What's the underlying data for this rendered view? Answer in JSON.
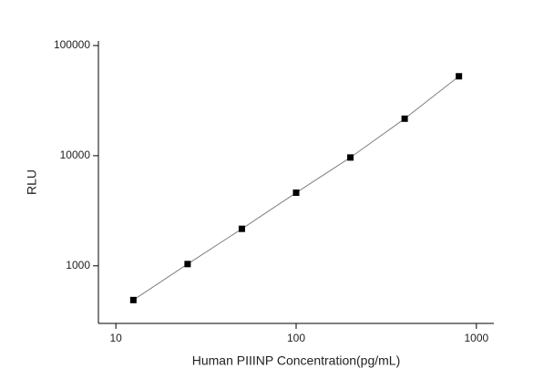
{
  "chart_data": {
    "type": "scatter",
    "x_label": "Human PIIINP Concentration(pg/mL)",
    "y_label": "RLU",
    "x": [
      12.5,
      25,
      50,
      100,
      200,
      400,
      800
    ],
    "series": [
      {
        "color": "#000000",
        "values": [
          489,
          1038,
          2167,
          4612,
          9630,
          21670,
          52600
        ]
      }
    ],
    "fit_line": true,
    "fit_color": "#808080",
    "xscale": "log",
    "yscale": "log",
    "xlim": [
      8,
      1250
    ],
    "ylim": [
      300,
      110000
    ],
    "xticks": [
      10,
      100,
      1000
    ],
    "yticks": [
      1000,
      10000,
      100000
    ],
    "grid": false
  }
}
